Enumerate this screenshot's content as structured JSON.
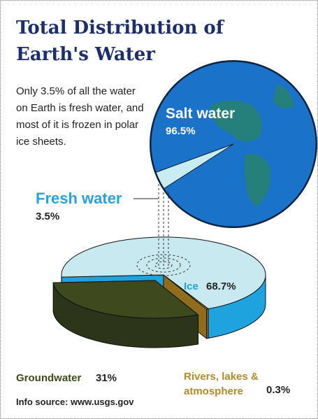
{
  "title": "Total Distribution of Earth's Water",
  "intro": "Only 3.5% of all the water on Earth is fresh water, and most of it is frozen in polar ice sheets.",
  "source": "Info source: www.usgs.gov",
  "chart_data": [
    {
      "type": "pie",
      "categories": [
        "Salt water",
        "Fresh water"
      ],
      "values": [
        96.5,
        3.5
      ],
      "value_labels": [
        "96.5%",
        "3.5%"
      ],
      "colors": [
        "#1a73c9",
        "#c9ebf2"
      ]
    },
    {
      "type": "pie3d",
      "categories": [
        "Ice",
        "Groundwater",
        "Rivers, lakes & atmosphere"
      ],
      "values": [
        68.7,
        31,
        0.3
      ],
      "value_labels": [
        "68.7%",
        "31%",
        "0.3%"
      ],
      "colors": [
        "#c9e9f0",
        "#3e4a1e",
        "#b8902a"
      ],
      "side_colors": [
        "#1fa3df",
        "#2c341a",
        "#8f6d1c"
      ]
    }
  ]
}
